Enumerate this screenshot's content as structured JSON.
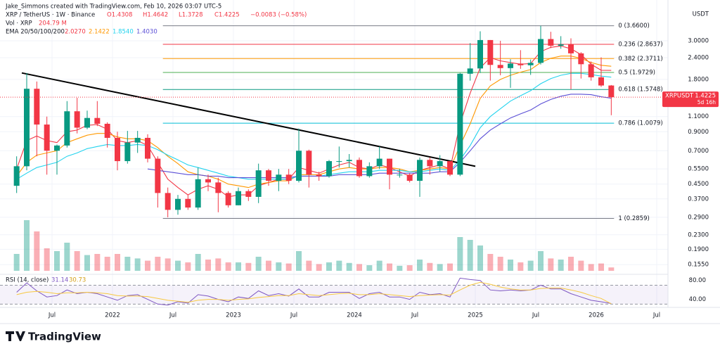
{
  "chart_data": {
    "type": "candlestick",
    "attribution": "Jake_Simmons created with TradingView.com, Feb 10, 2026 03:07 UTC-5",
    "symbol": "XRP / TetherUS · 1W · Binance",
    "ohlc_header": [
      {
        "value": 1.4308,
        "label": "O1.4308"
      },
      {
        "value": 1.4642,
        "label": "H1.4642"
      },
      {
        "value": 1.3728,
        "label": "L1.3728"
      },
      {
        "value": 1.4225,
        "label": "C1.4225"
      }
    ],
    "change": {
      "value": -0.0083,
      "label": "−0.0083 (−0.58%)"
    },
    "volume_title": "Vol · XRP",
    "volume_last": {
      "value": 204790000,
      "label": "204.79 M"
    },
    "ema_title": "EMA 20/50/100/200",
    "categories": [
      "2021-03",
      "2021-04",
      "2021-05",
      "2021-06",
      "2021-07",
      "2021-08",
      "2021-09",
      "2021-10",
      "2021-11",
      "2021-12",
      "2022-01",
      "2022-02",
      "2022-03",
      "2022-04",
      "2022-05",
      "2022-06",
      "2022-07",
      "2022-08",
      "2022-09",
      "2022-10",
      "2022-11",
      "2022-12",
      "2023-01",
      "2023-02",
      "2023-03",
      "2023-04",
      "2023-05",
      "2023-06",
      "2023-07",
      "2023-08",
      "2023-09",
      "2023-10",
      "2023-11",
      "2023-12",
      "2024-01",
      "2024-02",
      "2024-03",
      "2024-04",
      "2024-05",
      "2024-06",
      "2024-07",
      "2024-08",
      "2024-09",
      "2024-10",
      "2024-11",
      "2024-12",
      "2025-01",
      "2025-02",
      "2025-03",
      "2025-04",
      "2025-05",
      "2025-06",
      "2025-07",
      "2025-08",
      "2025-09",
      "2025-10",
      "2025-11",
      "2025-12",
      "2026-01",
      "2026-02"
    ],
    "open": [
      0.44,
      0.57,
      1.59,
      0.99,
      0.7,
      0.75,
      1.18,
      0.95,
      1.08,
      1.0,
      0.83,
      0.61,
      0.78,
      0.83,
      0.63,
      0.4,
      0.32,
      0.37,
      0.33,
      0.48,
      0.46,
      0.4,
      0.34,
      0.41,
      0.38,
      0.54,
      0.47,
      0.51,
      0.47,
      0.7,
      0.51,
      0.5,
      0.61,
      0.61,
      0.62,
      0.5,
      0.57,
      0.63,
      0.51,
      0.51,
      0.47,
      0.62,
      0.57,
      0.61,
      0.51,
      1.94,
      2.08,
      3.03,
      2.18,
      2.09,
      2.22,
      2.17,
      2.24,
      3.07,
      2.81,
      2.86,
      2.54,
      2.2,
      1.85,
      1.66
    ],
    "high": [
      0.65,
      1.96,
      1.75,
      1.1,
      0.76,
      1.35,
      1.41,
      1.19,
      1.35,
      1.02,
      0.9,
      0.91,
      0.91,
      0.87,
      0.65,
      0.43,
      0.39,
      0.39,
      0.56,
      0.51,
      0.49,
      0.41,
      0.43,
      0.42,
      0.59,
      0.55,
      0.55,
      0.55,
      0.94,
      0.71,
      0.53,
      0.62,
      0.74,
      0.67,
      0.64,
      0.6,
      0.74,
      0.63,
      0.55,
      0.52,
      0.64,
      0.64,
      0.66,
      0.61,
      1.96,
      2.91,
      3.4,
      3.03,
      3.0,
      2.35,
      2.65,
      2.34,
      3.66,
      3.38,
      3.19,
      3.1,
      2.58,
      2.28,
      2.41,
      1.67
    ],
    "low": [
      0.4,
      0.54,
      0.65,
      0.51,
      0.51,
      0.73,
      0.88,
      0.93,
      0.97,
      0.73,
      0.54,
      0.59,
      0.68,
      0.6,
      0.33,
      0.29,
      0.3,
      0.32,
      0.32,
      0.41,
      0.31,
      0.33,
      0.34,
      0.36,
      0.35,
      0.44,
      0.41,
      0.45,
      0.46,
      0.43,
      0.47,
      0.49,
      0.56,
      0.56,
      0.49,
      0.49,
      0.55,
      0.42,
      0.49,
      0.46,
      0.38,
      0.51,
      0.53,
      0.5,
      0.5,
      1.77,
      1.96,
      1.77,
      1.9,
      1.61,
      2.07,
      1.91,
      2.19,
      2.72,
      2.7,
      1.58,
      1.82,
      1.77,
      1.63,
      1.12
    ],
    "close": [
      0.57,
      1.59,
      0.99,
      0.7,
      0.75,
      1.18,
      0.95,
      1.08,
      1.0,
      0.83,
      0.61,
      0.78,
      0.83,
      0.63,
      0.4,
      0.32,
      0.37,
      0.33,
      0.48,
      0.46,
      0.4,
      0.34,
      0.41,
      0.38,
      0.54,
      0.47,
      0.51,
      0.47,
      0.7,
      0.51,
      0.5,
      0.61,
      0.61,
      0.62,
      0.5,
      0.57,
      0.63,
      0.51,
      0.51,
      0.47,
      0.62,
      0.57,
      0.61,
      0.51,
      1.94,
      2.08,
      3.03,
      2.18,
      2.09,
      2.22,
      2.17,
      2.24,
      3.07,
      2.81,
      2.86,
      2.54,
      2.2,
      1.85,
      1.66,
      1.4225
    ],
    "up_color": "#089981",
    "down_color": "#f23645",
    "volume": [
      3000,
      9000,
      7000,
      4000,
      3500,
      5000,
      3500,
      2800,
      3000,
      2500,
      3000,
      2500,
      2200,
      1800,
      2500,
      2200,
      1800,
      1500,
      3000,
      2000,
      2200,
      1500,
      1500,
      1400,
      2500,
      1800,
      1500,
      1300,
      3500,
      1800,
      1200,
      1500,
      1800,
      1400,
      1200,
      1000,
      1800,
      1300,
      900,
      1000,
      2000,
      1400,
      1200,
      1300,
      6000,
      5500,
      4500,
      3000,
      2500,
      2000,
      1500,
      1800,
      3500,
      2200,
      2000,
      2500,
      1800,
      1200,
      1300,
      600
    ],
    "ema": [
      {
        "color": "#f23645",
        "last": {
          "value": 2.027,
          "label": "2.0270"
        },
        "values": [
          0.55,
          0.8,
          0.85,
          0.8,
          0.78,
          0.9,
          0.92,
          0.98,
          0.99,
          0.93,
          0.8,
          0.78,
          0.8,
          0.75,
          0.6,
          0.48,
          0.43,
          0.39,
          0.42,
          0.44,
          0.42,
          0.38,
          0.39,
          0.39,
          0.44,
          0.46,
          0.48,
          0.48,
          0.56,
          0.54,
          0.52,
          0.55,
          0.58,
          0.6,
          0.56,
          0.55,
          0.58,
          0.56,
          0.53,
          0.5,
          0.54,
          0.56,
          0.58,
          0.55,
          1.0,
          1.5,
          2.1,
          2.4,
          2.3,
          2.25,
          2.2,
          2.22,
          2.6,
          2.75,
          2.8,
          2.7,
          2.5,
          2.2,
          2.03,
          2.027
        ]
      },
      {
        "color": "#ff9800",
        "last": {
          "value": 2.1422,
          "label": "2.1422"
        },
        "values": [
          0.5,
          0.6,
          0.66,
          0.68,
          0.7,
          0.78,
          0.82,
          0.86,
          0.88,
          0.88,
          0.84,
          0.82,
          0.82,
          0.8,
          0.73,
          0.65,
          0.59,
          0.53,
          0.51,
          0.5,
          0.48,
          0.45,
          0.44,
          0.43,
          0.45,
          0.46,
          0.47,
          0.47,
          0.51,
          0.51,
          0.51,
          0.53,
          0.55,
          0.56,
          0.55,
          0.55,
          0.56,
          0.56,
          0.55,
          0.53,
          0.54,
          0.55,
          0.56,
          0.55,
          0.75,
          1.0,
          1.4,
          1.65,
          1.8,
          1.9,
          1.98,
          2.05,
          2.25,
          2.38,
          2.45,
          2.45,
          2.38,
          2.25,
          2.17,
          2.1422
        ]
      },
      {
        "color": "#22d3ee",
        "last": {
          "value": 1.854,
          "label": "1.8540"
        },
        "values": [
          0.48,
          0.52,
          0.56,
          0.58,
          0.6,
          0.65,
          0.68,
          0.72,
          0.74,
          0.76,
          0.75,
          0.75,
          0.76,
          0.75,
          0.71,
          0.66,
          0.62,
          0.58,
          0.56,
          0.54,
          0.52,
          0.5,
          0.49,
          0.48,
          0.48,
          0.48,
          0.48,
          0.48,
          0.5,
          0.5,
          0.5,
          0.51,
          0.52,
          0.53,
          0.53,
          0.53,
          0.54,
          0.54,
          0.54,
          0.53,
          0.53,
          0.54,
          0.55,
          0.54,
          0.62,
          0.75,
          0.95,
          1.1,
          1.22,
          1.35,
          1.45,
          1.55,
          1.7,
          1.82,
          1.9,
          1.95,
          1.95,
          1.92,
          1.88,
          1.854
        ]
      },
      {
        "color": "#5b4fd6",
        "last": {
          "value": 1.403,
          "label": "1.4030"
        },
        "values": [
          null,
          null,
          null,
          null,
          null,
          null,
          null,
          null,
          null,
          null,
          null,
          null,
          null,
          0.55,
          0.54,
          0.53,
          0.52,
          0.51,
          0.51,
          0.5,
          0.5,
          0.49,
          0.49,
          0.49,
          0.49,
          0.49,
          0.49,
          0.49,
          0.5,
          0.5,
          0.5,
          0.5,
          0.51,
          0.51,
          0.51,
          0.51,
          0.52,
          0.52,
          0.52,
          0.52,
          0.52,
          0.52,
          0.53,
          0.53,
          0.6,
          0.7,
          0.82,
          0.92,
          1.0,
          1.08,
          1.14,
          1.2,
          1.3,
          1.38,
          1.44,
          1.48,
          1.48,
          1.47,
          1.43,
          1.403
        ]
      }
    ],
    "trendline": {
      "x": [
        "2021-04",
        "2025-01"
      ],
      "y": [
        1.96,
        0.57
      ],
      "color": "#000000"
    },
    "fib": {
      "start": "2022-06",
      "values": [
        3.66,
        2.8637,
        2.3711,
        1.9729,
        1.5748,
        1.0079,
        0.2859
      ],
      "labels": [
        "0 (3.6600)",
        "0.236 (2.8637)",
        "0.382 (2.3711)",
        "0.5 (1.9729)",
        "0.618 (1.5748)",
        "0.786 (1.0079)",
        "1 (0.2859)"
      ],
      "colors": [
        "#787b86",
        "#f23645",
        "#ff9800",
        "#4caf50",
        "#089981",
        "#00bcd4",
        "#787b86"
      ]
    },
    "ylim": [
      0.1363,
      5.148
    ],
    "log_scale": true,
    "grid": true,
    "y_unit": "USDT",
    "yticks": [
      {
        "value": 3,
        "label": "3.0000"
      },
      {
        "value": 2.4,
        "label": "2.4000"
      },
      {
        "value": 1.8,
        "label": "1.8000"
      },
      {
        "value": 1.1,
        "label": "1.1000"
      },
      {
        "value": 0.9,
        "label": "0.9000"
      },
      {
        "value": 0.7,
        "label": "0.7000"
      },
      {
        "value": 0.55,
        "label": "0.5500"
      },
      {
        "value": 0.45,
        "label": "0.4500"
      },
      {
        "value": 0.37,
        "label": "0.3700"
      },
      {
        "value": 0.29,
        "label": "0.2900"
      },
      {
        "value": 0.23,
        "label": "0.2300"
      },
      {
        "value": 0.19,
        "label": "0.1900"
      },
      {
        "value": 0.155,
        "label": "0.1550"
      }
    ],
    "last_price": {
      "name": "XRPUSDT",
      "value": 1.4225,
      "label": "1.4225",
      "countdown": "5d 16h",
      "color": "#f23645"
    },
    "xticks": [
      {
        "value": "2021-07",
        "label": "Jul"
      },
      {
        "value": "2022-01",
        "label": "2022"
      },
      {
        "value": "2022-07",
        "label": "Jul"
      },
      {
        "value": "2023-01",
        "label": "2023"
      },
      {
        "value": "2023-07",
        "label": "Jul"
      },
      {
        "value": "2024-01",
        "label": "2024"
      },
      {
        "value": "2024-07",
        "label": "Jul"
      },
      {
        "value": "2025-01",
        "label": "2025"
      },
      {
        "value": "2025-07",
        "label": "Jul"
      },
      {
        "value": "2026-01",
        "label": "2026"
      },
      {
        "value": "2026-07",
        "label": "Jul"
      }
    ],
    "rsi": {
      "title": "RSI (14, close)",
      "color": "#7e57c2",
      "ma_color": "#f7c841",
      "values": [
        55,
        75,
        58,
        45,
        48,
        60,
        52,
        55,
        52,
        45,
        38,
        48,
        50,
        40,
        30,
        28,
        35,
        32,
        50,
        47,
        40,
        35,
        45,
        42,
        58,
        48,
        52,
        47,
        62,
        45,
        45,
        55,
        55,
        55,
        42,
        52,
        55,
        45,
        45,
        40,
        55,
        50,
        52,
        45,
        85,
        82,
        80,
        60,
        58,
        60,
        58,
        60,
        70,
        62,
        62,
        52,
        45,
        38,
        35,
        31.14
      ],
      "ma": [
        50,
        55,
        57,
        55,
        52,
        54,
        54,
        55,
        54,
        52,
        48,
        47,
        47,
        46,
        42,
        38,
        36,
        34,
        38,
        40,
        40,
        38,
        40,
        41,
        44,
        46,
        48,
        48,
        52,
        50,
        48,
        50,
        52,
        53,
        50,
        50,
        52,
        50,
        48,
        46,
        48,
        49,
        50,
        49,
        60,
        70,
        76,
        72,
        66,
        62,
        60,
        60,
        63,
        64,
        64,
        60,
        55,
        48,
        42,
        30.73
      ],
      "last": {
        "value": 31.14,
        "label": "31.14"
      },
      "ma_last": {
        "value": 30.73,
        "label": "30.73"
      },
      "ylim": [
        26,
        90
      ],
      "bands": [
        70,
        30
      ],
      "yticks": [
        {
          "value": 80,
          "label": "80.00"
        },
        {
          "value": 40,
          "label": "40.00"
        }
      ]
    },
    "brand": "TradingView"
  }
}
